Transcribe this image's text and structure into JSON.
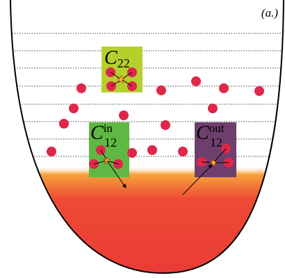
{
  "panel_label": "(a.)",
  "boxes": [
    {
      "symbol": "C",
      "subscript": "22"
    },
    {
      "symbol": "C",
      "superscript": "in",
      "subscript": "12"
    },
    {
      "symbol": "C",
      "superscript": "out",
      "subscript": "12"
    }
  ]
}
